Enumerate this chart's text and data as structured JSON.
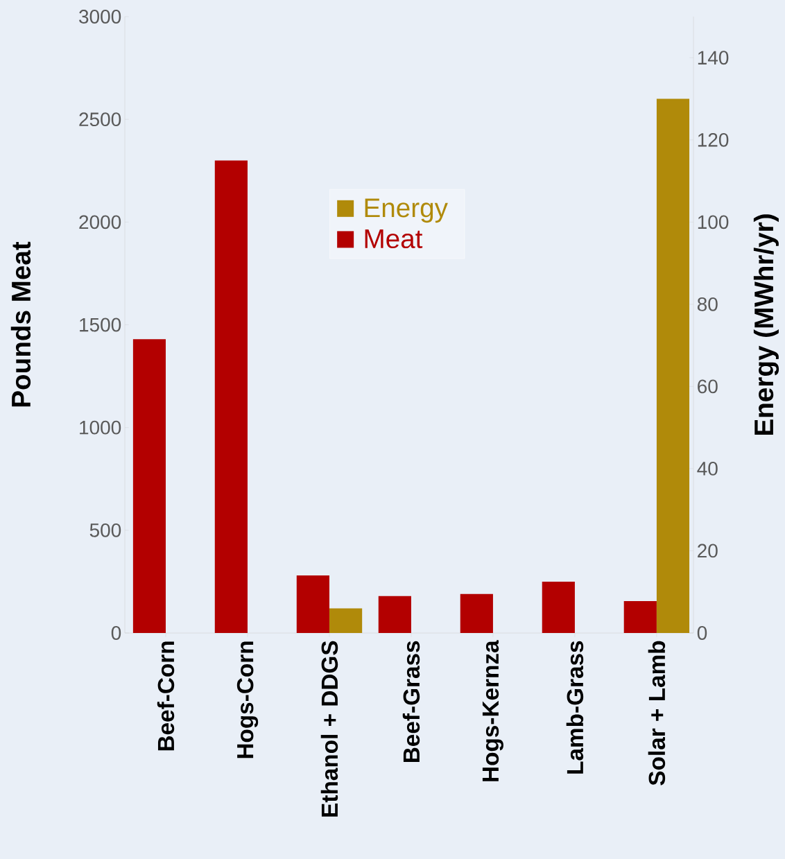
{
  "chart_data": {
    "type": "bar",
    "ylabel": "Pounds Meat",
    "y2label": "Energy  (MWhr/yr)",
    "categories": [
      "Beef-Corn",
      "Hogs-Corn",
      "Ethanol + DDGS",
      "Beef-Grass",
      "Hogs-Kernza",
      "Lamb-Grass",
      "Solar + Lamb"
    ],
    "series": [
      {
        "name": "Meat",
        "color": "#b30000",
        "values": [
          1430,
          2300,
          280,
          180,
          190,
          250,
          155
        ]
      },
      {
        "name": "Energy",
        "color": "#b08a0a",
        "axis": "y2",
        "values": [
          null,
          null,
          6,
          null,
          null,
          null,
          130
        ]
      }
    ],
    "ylim": [
      0,
      3000
    ],
    "yticks": [
      0,
      500,
      1000,
      1500,
      2000,
      2500,
      3000
    ],
    "y2lim": [
      0,
      150
    ],
    "y2ticks": [
      0,
      20,
      40,
      60,
      80,
      100,
      120,
      140
    ],
    "legend": "top",
    "grid": false
  }
}
